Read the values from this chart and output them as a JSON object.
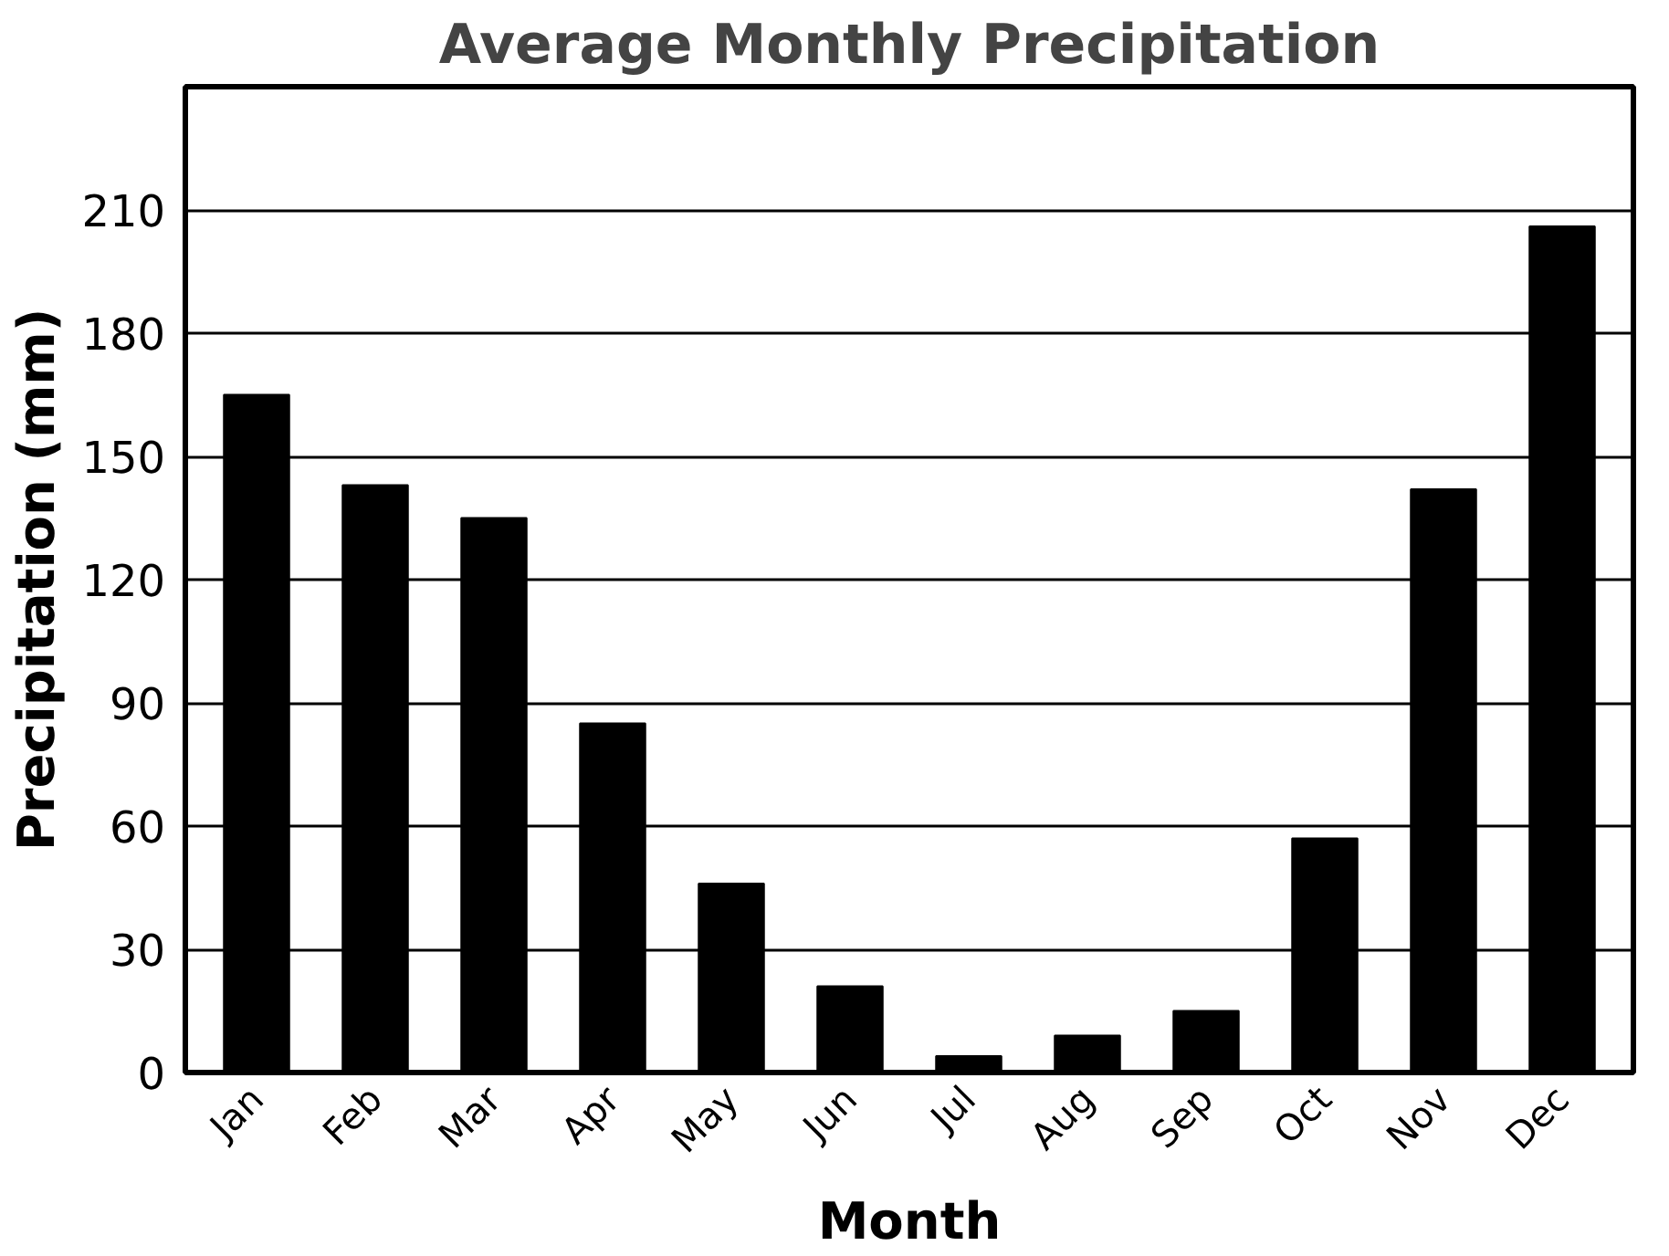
{
  "chart_data": {
    "type": "bar",
    "title": "Average Monthly Precipitation",
    "xlabel": "Month",
    "ylabel": "Precipitation (mm)",
    "categories": [
      "Jan",
      "Feb",
      "Mar",
      "Apr",
      "May",
      "Jun",
      "Jul",
      "Aug",
      "Sep",
      "Oct",
      "Nov",
      "Dec"
    ],
    "values": [
      165,
      143,
      135,
      85,
      46,
      21,
      4,
      9,
      15,
      57,
      142,
      206
    ],
    "color": "#000000",
    "ylim": [
      0,
      240
    ],
    "yticks": [
      0,
      30,
      60,
      90,
      120,
      150,
      180,
      210
    ],
    "grid": "y"
  }
}
